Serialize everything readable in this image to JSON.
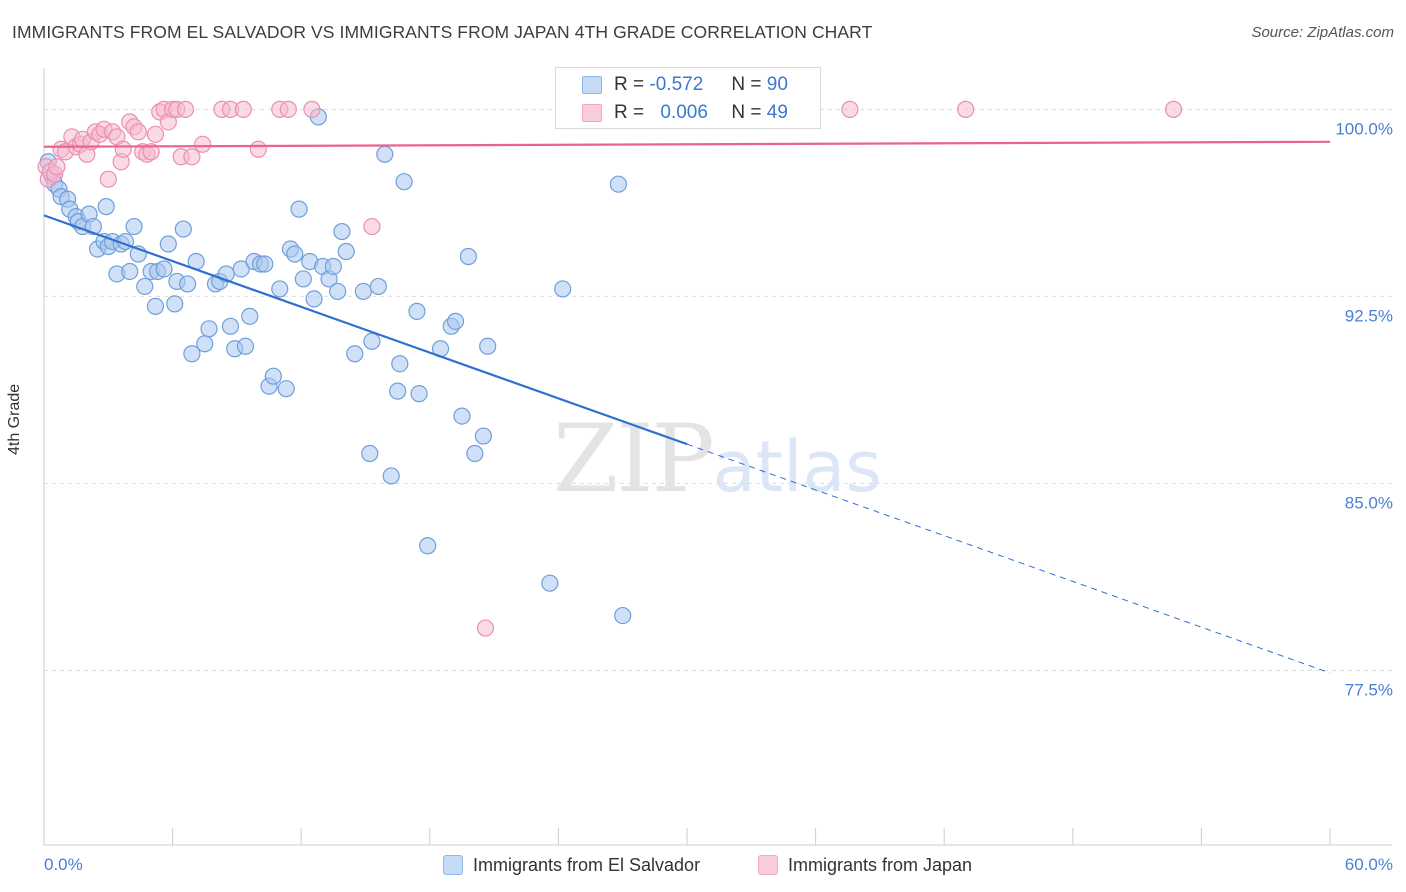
{
  "header": {
    "title": "IMMIGRANTS FROM EL SALVADOR VS IMMIGRANTS FROM JAPAN 4TH GRADE CORRELATION CHART",
    "source": "Source: ZipAtlas.com"
  },
  "watermark": {
    "zip": "ZIP",
    "atlas": "atlas"
  },
  "legend": {
    "r_label": "R =",
    "n_label": "N =",
    "rows": [
      {
        "r": "-0.572",
        "n": "90",
        "color": "#8fb8ea"
      },
      {
        "r": "0.006",
        "n": "49",
        "color": "#f2a6bf"
      }
    ]
  },
  "colors": {
    "blue_fill": "#a9c8f0",
    "blue_stroke": "#6f9fdb",
    "blue_line": "#2f6fcf",
    "pink_fill": "#f6bcd0",
    "pink_stroke": "#eb8fb0",
    "pink_line": "#e8648d",
    "axis_text": "#4a7fd6",
    "grid": "#dddddd"
  },
  "chart_data": {
    "type": "scatter",
    "ylabel": "4th Grade",
    "xlim": [
      0,
      60
    ],
    "ylim": [
      70.5,
      101.9
    ],
    "x_tick_labels": [
      "0.0%",
      "60.0%"
    ],
    "x_tick_values": [
      0,
      60
    ],
    "x_minor_ticks": [
      0,
      6,
      12,
      18,
      24,
      30,
      36,
      42,
      48,
      54,
      60
    ],
    "y_ticks": [
      {
        "value": 100,
        "label": "100.0%"
      },
      {
        "value": 92.5,
        "label": "92.5%"
      },
      {
        "value": 85,
        "label": "85.0%"
      },
      {
        "value": 77.5,
        "label": "77.5%"
      }
    ],
    "series": [
      {
        "name": "Immigrants from El Salvador",
        "color": "#8fb8ea",
        "trend": {
          "x0": 0,
          "y0": 95.75,
          "x_solid_end": 30,
          "x1": 60,
          "y1": 77.4
        },
        "points": [
          [
            0.2,
            97.9
          ],
          [
            0.4,
            97.3
          ],
          [
            0.5,
            97.0
          ],
          [
            0.7,
            96.8
          ],
          [
            0.8,
            96.5
          ],
          [
            1.1,
            96.4
          ],
          [
            1.2,
            96.0
          ],
          [
            1.5,
            95.7
          ],
          [
            1.6,
            95.5
          ],
          [
            1.8,
            95.3
          ],
          [
            2.1,
            95.8
          ],
          [
            2.3,
            95.3
          ],
          [
            2.5,
            94.4
          ],
          [
            2.8,
            94.7
          ],
          [
            2.9,
            96.1
          ],
          [
            3.0,
            94.5
          ],
          [
            3.2,
            94.7
          ],
          [
            3.4,
            93.4
          ],
          [
            3.6,
            94.6
          ],
          [
            3.8,
            94.7
          ],
          [
            4.0,
            93.5
          ],
          [
            4.2,
            95.3
          ],
          [
            4.4,
            94.2
          ],
          [
            4.7,
            92.9
          ],
          [
            5.0,
            93.5
          ],
          [
            5.2,
            92.1
          ],
          [
            5.3,
            93.5
          ],
          [
            5.6,
            93.6
          ],
          [
            5.8,
            94.6
          ],
          [
            6.1,
            92.2
          ],
          [
            6.2,
            93.1
          ],
          [
            6.5,
            95.2
          ],
          [
            6.7,
            93.0
          ],
          [
            6.9,
            90.2
          ],
          [
            7.1,
            93.9
          ],
          [
            7.5,
            90.6
          ],
          [
            7.7,
            91.2
          ],
          [
            8.0,
            93.0
          ],
          [
            8.2,
            93.1
          ],
          [
            8.5,
            93.4
          ],
          [
            8.7,
            91.3
          ],
          [
            8.9,
            90.4
          ],
          [
            9.2,
            93.6
          ],
          [
            9.4,
            90.5
          ],
          [
            9.6,
            91.7
          ],
          [
            9.8,
            93.9
          ],
          [
            10.1,
            93.8
          ],
          [
            10.3,
            93.8
          ],
          [
            10.5,
            88.9
          ],
          [
            10.7,
            89.3
          ],
          [
            11.0,
            92.8
          ],
          [
            11.3,
            88.8
          ],
          [
            11.5,
            94.4
          ],
          [
            11.7,
            94.2
          ],
          [
            11.9,
            96.0
          ],
          [
            12.1,
            93.2
          ],
          [
            12.4,
            93.9
          ],
          [
            12.6,
            92.4
          ],
          [
            12.8,
            99.7
          ],
          [
            13.0,
            93.7
          ],
          [
            13.3,
            93.2
          ],
          [
            13.5,
            93.7
          ],
          [
            13.7,
            92.7
          ],
          [
            13.9,
            95.1
          ],
          [
            14.1,
            94.3
          ],
          [
            14.5,
            90.2
          ],
          [
            14.9,
            92.7
          ],
          [
            15.2,
            86.2
          ],
          [
            15.3,
            90.7
          ],
          [
            15.6,
            92.9
          ],
          [
            15.9,
            98.2
          ],
          [
            16.2,
            85.3
          ],
          [
            16.5,
            88.7
          ],
          [
            16.6,
            89.8
          ],
          [
            16.8,
            97.1
          ],
          [
            17.4,
            91.9
          ],
          [
            17.5,
            88.6
          ],
          [
            17.9,
            82.5
          ],
          [
            18.5,
            90.4
          ],
          [
            19.0,
            91.3
          ],
          [
            19.2,
            91.5
          ],
          [
            19.5,
            87.7
          ],
          [
            19.8,
            94.1
          ],
          [
            20.1,
            86.2
          ],
          [
            20.5,
            86.9
          ],
          [
            20.7,
            90.5
          ],
          [
            23.6,
            81.0
          ],
          [
            24.2,
            92.8
          ],
          [
            26.8,
            97.0
          ],
          [
            27.0,
            79.7
          ]
        ]
      },
      {
        "name": "Immigrants from Japan",
        "color": "#f2a6bf",
        "trend": {
          "x0": 0,
          "y0": 98.5,
          "x1": 60,
          "y1": 98.7
        },
        "points": [
          [
            0.1,
            97.7
          ],
          [
            0.2,
            97.2
          ],
          [
            0.3,
            97.5
          ],
          [
            0.5,
            97.4
          ],
          [
            0.6,
            97.7
          ],
          [
            0.8,
            98.4
          ],
          [
            1.0,
            98.3
          ],
          [
            1.3,
            98.9
          ],
          [
            1.5,
            98.5
          ],
          [
            1.7,
            98.6
          ],
          [
            1.8,
            98.8
          ],
          [
            2.0,
            98.2
          ],
          [
            2.2,
            98.7
          ],
          [
            2.4,
            99.1
          ],
          [
            2.6,
            99.0
          ],
          [
            2.8,
            99.2
          ],
          [
            3.0,
            97.2
          ],
          [
            3.2,
            99.1
          ],
          [
            3.4,
            98.9
          ],
          [
            3.6,
            97.9
          ],
          [
            3.7,
            98.4
          ],
          [
            4.0,
            99.5
          ],
          [
            4.2,
            99.3
          ],
          [
            4.4,
            99.1
          ],
          [
            4.6,
            98.3
          ],
          [
            4.8,
            98.2
          ],
          [
            5.0,
            98.3
          ],
          [
            5.2,
            99.0
          ],
          [
            5.4,
            99.9
          ],
          [
            5.6,
            100.0
          ],
          [
            5.8,
            99.5
          ],
          [
            6.0,
            100.0
          ],
          [
            6.2,
            100.0
          ],
          [
            6.4,
            98.1
          ],
          [
            6.6,
            100.0
          ],
          [
            6.9,
            98.1
          ],
          [
            7.4,
            98.6
          ],
          [
            8.3,
            100.0
          ],
          [
            8.7,
            100.0
          ],
          [
            9.3,
            100.0
          ],
          [
            10.0,
            98.4
          ],
          [
            11.0,
            100.0
          ],
          [
            11.4,
            100.0
          ],
          [
            12.5,
            100.0
          ],
          [
            15.3,
            95.3
          ],
          [
            20.6,
            79.2
          ],
          [
            37.6,
            100.0
          ],
          [
            43.0,
            100.0
          ],
          [
            52.7,
            100.0
          ]
        ]
      }
    ]
  },
  "bottom_legend": [
    {
      "label": "Immigrants from El Salvador"
    },
    {
      "label": "Immigrants from Japan"
    }
  ]
}
